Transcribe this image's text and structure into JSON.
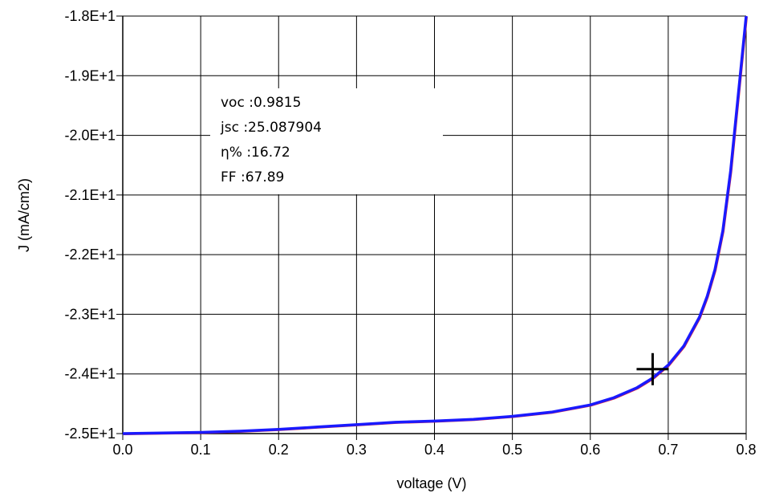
{
  "chart_data": {
    "type": "line",
    "title": "",
    "xlabel": "voltage (V)",
    "ylabel": "J (mA/cm2)",
    "xlim": [
      0.0,
      0.8
    ],
    "ylim": [
      -25,
      -18
    ],
    "grid": true,
    "x_ticks": [
      0.0,
      0.1,
      0.2,
      0.3,
      0.4,
      0.5,
      0.6,
      0.7,
      0.8
    ],
    "x_tick_labels": [
      "0.0",
      "0.1",
      "0.2",
      "0.3",
      "0.4",
      "0.5",
      "0.6",
      "0.7",
      "0.8"
    ],
    "y_ticks": [
      -18,
      -19,
      -20,
      -21,
      -22,
      -23,
      -24,
      -25
    ],
    "y_tick_labels": [
      "-1.8E+1",
      "-1.9E+1",
      "-2.0E+1",
      "-2.1E+1",
      "-2.2E+1",
      "-2.3E+1",
      "-2.4E+1",
      "-2.5E+1"
    ],
    "series": [
      {
        "color": "#1a1aff",
        "x": [
          0.0,
          0.05,
          0.1,
          0.15,
          0.2,
          0.25,
          0.3,
          0.35,
          0.4,
          0.45,
          0.5,
          0.55,
          0.6,
          0.63,
          0.66,
          0.68,
          0.7,
          0.72,
          0.74,
          0.75,
          0.76,
          0.77,
          0.78,
          0.79,
          0.8
        ],
        "y": [
          -25.0,
          -24.99,
          -24.98,
          -24.96,
          -24.93,
          -24.89,
          -24.85,
          -24.81,
          -24.79,
          -24.76,
          -24.71,
          -24.64,
          -24.52,
          -24.4,
          -24.23,
          -24.07,
          -23.85,
          -23.53,
          -23.05,
          -22.7,
          -22.25,
          -21.6,
          -20.6,
          -19.3,
          -18.0
        ]
      }
    ],
    "cursor_marker": {
      "x": 0.68,
      "y": -23.92
    },
    "annotations": [
      "voc :0.9815",
      "jsc :25.087904",
      "η% :16.72",
      "FF :67.89"
    ]
  }
}
